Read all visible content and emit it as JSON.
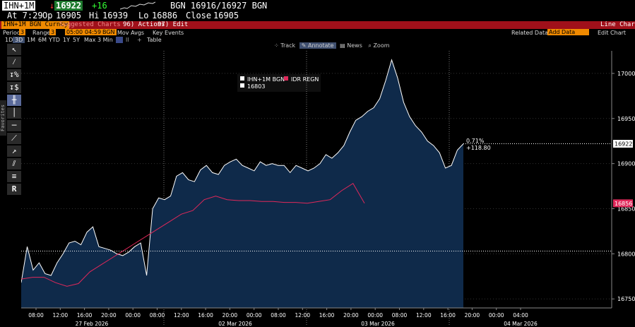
{
  "quote": {
    "ticker": "IHN+1M",
    "last": "16922",
    "change": "+16",
    "bid_ask": "BGN 16916/16927 BGN",
    "time": "At 7:29",
    "open_label": "Op",
    "open": "16905",
    "high_label": "Hi",
    "high": "16939",
    "low_label": "Lo",
    "low": "16886",
    "close_label": "Close",
    "close": "16905"
  },
  "command_bar": {
    "security": "IHN+1M BGN Curncy",
    "suggested": "Suggested Charts",
    "actions": "96) Actions",
    "edit": "97) Edit",
    "title": "Line Chart"
  },
  "settings_bar": {
    "period_label": "Period",
    "period_value": "3",
    "range_label": "Range",
    "range_value": "3",
    "from": "05:00",
    "to": "04:59",
    "source": "BGN",
    "mov_avgs": "Mov Avgs",
    "key_events": "Key Events",
    "related_data": "Related Data",
    "add_data": "Add Data",
    "edit_chart": "Edit Chart"
  },
  "timeframes": [
    "1D",
    "3D",
    "1M",
    "6M",
    "YTD",
    "1Y",
    "5Y",
    "Max",
    "3 Min",
    "Table"
  ],
  "selected_timeframe": "3D",
  "chart_tools": [
    "Track",
    "Annotate",
    "News",
    "Zoom"
  ],
  "side_tab": "Favorites",
  "legend": {
    "series1": "IHN+1M BGN",
    "series2": "IDR REGN",
    "ref_value": "16803"
  },
  "annotation": {
    "pct": "0.71%",
    "pts": "+118.80"
  },
  "price_tags": {
    "last": "16922",
    "regn": "16856"
  },
  "colors": {
    "series1_line": "#ffffff",
    "series1_fill": "#0f2a4a",
    "series2_line": "#e0285a",
    "orange": "#f08a00",
    "red_bar": "#a0101a"
  },
  "chart_data": {
    "type": "area",
    "ylim": [
      16740,
      17025
    ],
    "yticks": [
      16750,
      16800,
      16850,
      16900,
      16950,
      17000
    ],
    "ref_line": 16803,
    "last_line": 16922,
    "x_time_labels": [
      "08:00",
      "12:00",
      "16:00",
      "20:00",
      "00:00",
      "08:00",
      "12:00",
      "16:00",
      "20:00",
      "00:00",
      "08:00",
      "12:00",
      "16:00",
      "20:00",
      "00:00",
      "08:00",
      "12:00",
      "16:00",
      "20:00",
      "00:00",
      "04:00"
    ],
    "x_date_labels": [
      "27 Feb 2026",
      "02 Mar 2026",
      "03 Mar 2026",
      "04 Mar 2026"
    ],
    "series": [
      {
        "name": "IHN+1M BGN",
        "values": [
          16768,
          16808,
          16782,
          16790,
          16778,
          16776,
          16790,
          16800,
          16812,
          16814,
          16810,
          16824,
          16830,
          16808,
          16806,
          16804,
          16800,
          16798,
          16802,
          16808,
          16812,
          16776,
          16850,
          16862,
          16860,
          16864,
          16886,
          16890,
          16882,
          16880,
          16893,
          16898,
          16890,
          16888,
          16898,
          16902,
          16905,
          16898,
          16895,
          16892,
          16902,
          16898,
          16900,
          16898,
          16898,
          16890,
          16898,
          16895,
          16892,
          16895,
          16900,
          16910,
          16906,
          16912,
          16920,
          16935,
          16948,
          16952,
          16958,
          16962,
          16972,
          16992,
          17015,
          16995,
          16968,
          16952,
          16942,
          16935,
          16925,
          16920,
          16912,
          16895,
          16898,
          16915,
          16922
        ]
      },
      {
        "name": "IDR REGN",
        "values": [
          16772,
          16774,
          16774,
          16768,
          16764,
          16767,
          16780,
          16788,
          16796,
          16804,
          16812,
          16820,
          16828,
          16836,
          16844,
          16848,
          16860,
          16864,
          16860,
          16859,
          16859,
          16858,
          16858,
          16857,
          16857,
          16856,
          16858,
          16860,
          16870,
          16878,
          16856
        ]
      }
    ]
  }
}
